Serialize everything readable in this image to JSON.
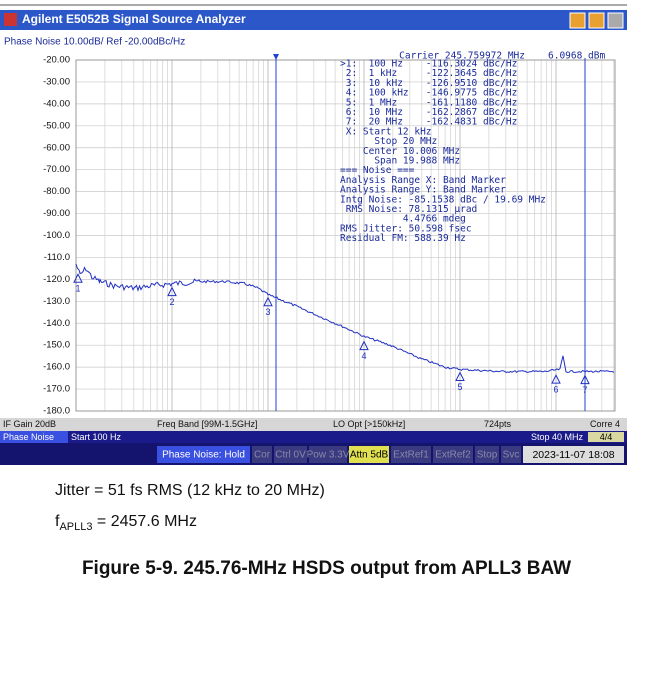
{
  "window": {
    "title": "Agilent E5052B Signal Source Analyzer"
  },
  "header": "Phase Noise 10.00dB/ Ref -20.00dBc/Hz",
  "carrier": "Carrier 245.759972 MHz",
  "carrier_power": "6.0968 dBm",
  "y_labels": [
    "-20.00",
    "-30.00",
    "-40.00",
    "-50.00",
    "-60.00",
    "-70.00",
    "-80.00",
    "-90.00",
    "-100.0",
    "-110.0",
    "-120.0",
    "-130.0",
    "-140.0",
    "-150.0",
    "-160.0",
    "-170.0",
    "-180.0"
  ],
  "marker_lines": [
    ">1:  100 Hz    -116.3024 dBc/Hz",
    " 2:  1 kHz     -122.3645 dBc/Hz",
    " 3:  10 kHz    -126.9510 dBc/Hz",
    " 4:  100 kHz   -146.9775 dBc/Hz",
    " 5:  1 MHz     -161.1180 dBc/Hz",
    " 6:  10 MHz    -162.2867 dBc/Hz",
    " 7:  20 MHz    -162.4831 dBc/Hz",
    " X: Start 12 kHz",
    "      Stop 20 MHz",
    "    Center 10.006 MHz",
    "      Span 19.988 MHz",
    "=== Noise ===",
    "Analysis Range X: Band Marker",
    "Analysis Range Y: Band Marker",
    "Intg Noise: -85.1538 dBc / 19.69 MHz",
    " RMS Noise: 78.1315 µrad",
    "           4.4766 mdeg",
    "RMS Jitter: 50.598 fsec",
    "Residual FM: 588.39 Hz"
  ],
  "marker_labels": [
    "1",
    "2",
    "3",
    "4",
    "5",
    "6",
    "7"
  ],
  "status_row": [
    "IF Gain 20dB",
    "Freq Band [99M-1.5GHz]",
    "LO Opt [>150kHz]",
    "724pts",
    "Corre 4"
  ],
  "sweep": {
    "mode": "Phase Noise",
    "start": "Start 100 Hz",
    "stop": "Stop 40 MHz",
    "page": "4/4"
  },
  "buttons": [
    "Phase Noise: Hold",
    "Cor",
    "Ctrl 0V",
    "Pow 3.3V",
    "Attn 5dB",
    "ExtRef1",
    "ExtRef2",
    "Stop",
    "Svc"
  ],
  "datetime": "2023-11-07 18:08",
  "notes": {
    "jitter": "Jitter = 51 fs RMS (12 kHz to 20 MHz)",
    "f": "f",
    "sub": "APLL3",
    "value": " = 2457.6 MHz"
  },
  "caption": "Figure 5-9. 245.76-MHz HSDS output from APLL3 BAW"
}
